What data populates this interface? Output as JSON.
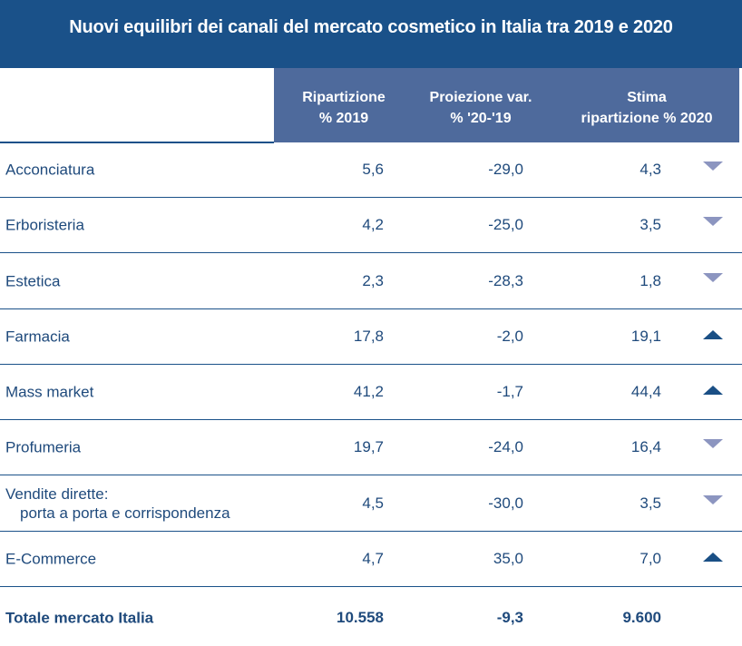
{
  "title": "Nuovi equilibri dei canali del mercato cosmetico in Italia tra 2019 e 2020",
  "headers": {
    "col1": [
      "Ripartizione",
      "% 2019"
    ],
    "col2": [
      "Proiezione var.",
      "% '20-'19"
    ],
    "col3": [
      "Stima",
      "ripartizione % 2020"
    ]
  },
  "colors": {
    "title_bg": "#1a5189",
    "header_bg": "#4e6a9c",
    "text": "#1f4a7c",
    "arrow_up": "#1a4f85",
    "arrow_down": "#8c95c0"
  },
  "rows": [
    {
      "label": "Acconciatura",
      "r2019": "5,6",
      "var": "-29,0",
      "s2020": "4,3",
      "trend": "down"
    },
    {
      "label": "Erboristeria",
      "r2019": "4,2",
      "var": "-25,0",
      "s2020": "3,5",
      "trend": "down"
    },
    {
      "label": "Estetica",
      "r2019": "2,3",
      "var": "-28,3",
      "s2020": "1,8",
      "trend": "down"
    },
    {
      "label": "Farmacia",
      "r2019": "17,8",
      "var": "-2,0",
      "s2020": "19,1",
      "trend": "up"
    },
    {
      "label": "Mass market",
      "r2019": "41,2",
      "var": "-1,7",
      "s2020": "44,4",
      "trend": "up"
    },
    {
      "label": "Profumeria",
      "r2019": "19,7",
      "var": "-24,0",
      "s2020": "16,4",
      "trend": "down"
    },
    {
      "label": "Vendite dirette:",
      "sublabel": "porta a porta e  corrispondenza",
      "r2019": "4,5",
      "var": "-30,0",
      "s2020": "3,5",
      "trend": "down"
    },
    {
      "label": "E-Commerce",
      "r2019": "4,7",
      "var": "35,0",
      "s2020": "7,0",
      "trend": "up"
    }
  ],
  "total": {
    "label": "Totale mercato Italia",
    "r2019": "10.558",
    "var": "-9,3",
    "s2020": "9.600"
  }
}
